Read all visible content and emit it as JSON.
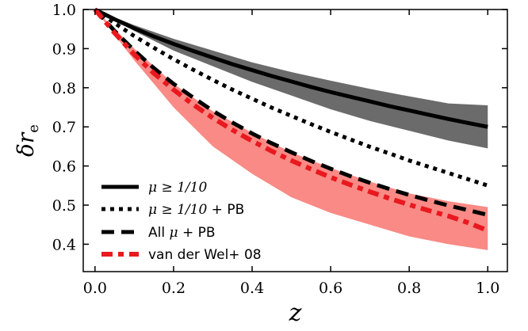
{
  "chart_data": {
    "type": "line",
    "xlabel": "z",
    "ylabel": "δr_e",
    "ylabel_main": "δr",
    "ylabel_sub": "e",
    "xlim": [
      -0.03,
      1.05
    ],
    "ylim": [
      0.33,
      1.0
    ],
    "xticks": [
      0.0,
      0.2,
      0.4,
      0.6,
      0.8,
      1.0
    ],
    "xtick_labels": [
      "0.0",
      "0.2",
      "0.4",
      "0.6",
      "0.8",
      "1.0"
    ],
    "yticks": [
      0.4,
      0.5,
      0.6,
      0.7,
      0.8,
      0.9,
      1.0
    ],
    "ytick_labels": [
      "0.4",
      "0.5",
      "0.6",
      "0.7",
      "0.8",
      "0.9",
      "1.0"
    ],
    "grid": false,
    "legend_position": "lower-left",
    "bands": [
      {
        "name": "μ ≥ 1/10 range",
        "color": "#6b6b6b",
        "x": [
          0.0,
          0.1,
          0.2,
          0.3,
          0.4,
          0.5,
          0.6,
          0.7,
          0.8,
          0.9,
          1.0
        ],
        "upper": [
          1.0,
          0.96,
          0.925,
          0.895,
          0.865,
          0.84,
          0.818,
          0.797,
          0.778,
          0.76,
          0.755
        ],
        "lower": [
          1.0,
          0.945,
          0.895,
          0.855,
          0.815,
          0.78,
          0.745,
          0.715,
          0.69,
          0.665,
          0.645
        ]
      },
      {
        "name": "van der Wel+ 08 range",
        "color": "#f98a85",
        "x": [
          0.0,
          0.1,
          0.2,
          0.3,
          0.4,
          0.5,
          0.6,
          0.7,
          0.8,
          0.9,
          1.0
        ],
        "upper": [
          1.0,
          0.9,
          0.81,
          0.74,
          0.685,
          0.635,
          0.595,
          0.56,
          0.53,
          0.51,
          0.495
        ],
        "lower": [
          1.0,
          0.87,
          0.75,
          0.65,
          0.58,
          0.52,
          0.48,
          0.45,
          0.42,
          0.4,
          0.385
        ]
      }
    ],
    "series": [
      {
        "name": "μ ≥ 1/10",
        "label_math": "μ ≥ 1/10",
        "label_text": "",
        "style": "solid",
        "color": "#000000",
        "x": [
          0.0,
          0.05,
          0.1,
          0.15,
          0.2,
          0.25,
          0.3,
          0.35,
          0.4,
          0.45,
          0.5,
          0.55,
          0.6,
          0.65,
          0.7,
          0.75,
          0.8,
          0.85,
          0.9,
          0.95,
          1.0
        ],
        "values": [
          1.0,
          0.975,
          0.952,
          0.931,
          0.912,
          0.894,
          0.877,
          0.86,
          0.845,
          0.83,
          0.816,
          0.802,
          0.789,
          0.777,
          0.765,
          0.753,
          0.742,
          0.731,
          0.72,
          0.71,
          0.7
        ]
      },
      {
        "name": "μ ≥ 1/10 + PB",
        "label_math": "μ ≥ 1/10",
        "label_text": " + PB",
        "style": "dotted",
        "color": "#000000",
        "x": [
          0.0,
          0.05,
          0.1,
          0.15,
          0.2,
          0.25,
          0.3,
          0.35,
          0.4,
          0.45,
          0.5,
          0.55,
          0.6,
          0.65,
          0.7,
          0.75,
          0.8,
          0.85,
          0.9,
          0.95,
          1.0
        ],
        "values": [
          1.0,
          0.965,
          0.932,
          0.902,
          0.873,
          0.846,
          0.82,
          0.795,
          0.772,
          0.749,
          0.728,
          0.707,
          0.687,
          0.668,
          0.649,
          0.632,
          0.614,
          0.598,
          0.582,
          0.566,
          0.55
        ]
      },
      {
        "name": "All μ + PB",
        "label_math": "μ",
        "label_prefix": "All ",
        "label_text": " + PB",
        "style": "dashed",
        "color": "#000000",
        "x": [
          0.0,
          0.05,
          0.1,
          0.15,
          0.2,
          0.25,
          0.3,
          0.35,
          0.4,
          0.45,
          0.5,
          0.55,
          0.6,
          0.65,
          0.7,
          0.75,
          0.8,
          0.85,
          0.9,
          0.95,
          1.0
        ],
        "values": [
          1.0,
          0.945,
          0.895,
          0.85,
          0.81,
          0.775,
          0.741,
          0.711,
          0.683,
          0.658,
          0.635,
          0.613,
          0.593,
          0.574,
          0.557,
          0.541,
          0.526,
          0.512,
          0.499,
          0.487,
          0.475
        ]
      },
      {
        "name": "van der Wel+ 08",
        "label_math": "",
        "label_text": "van der Wel+ 08",
        "style": "dashdot",
        "color": "#e8191f",
        "x": [
          0.0,
          0.05,
          0.1,
          0.15,
          0.2,
          0.25,
          0.3,
          0.35,
          0.4,
          0.45,
          0.5,
          0.55,
          0.6,
          0.65,
          0.7,
          0.75,
          0.8,
          0.85,
          0.9,
          0.95,
          1.0
        ],
        "values": [
          1.0,
          0.94,
          0.885,
          0.837,
          0.795,
          0.757,
          0.723,
          0.692,
          0.664,
          0.638,
          0.614,
          0.592,
          0.571,
          0.552,
          0.534,
          0.517,
          0.501,
          0.486,
          0.472,
          0.455,
          0.435
        ]
      }
    ]
  }
}
